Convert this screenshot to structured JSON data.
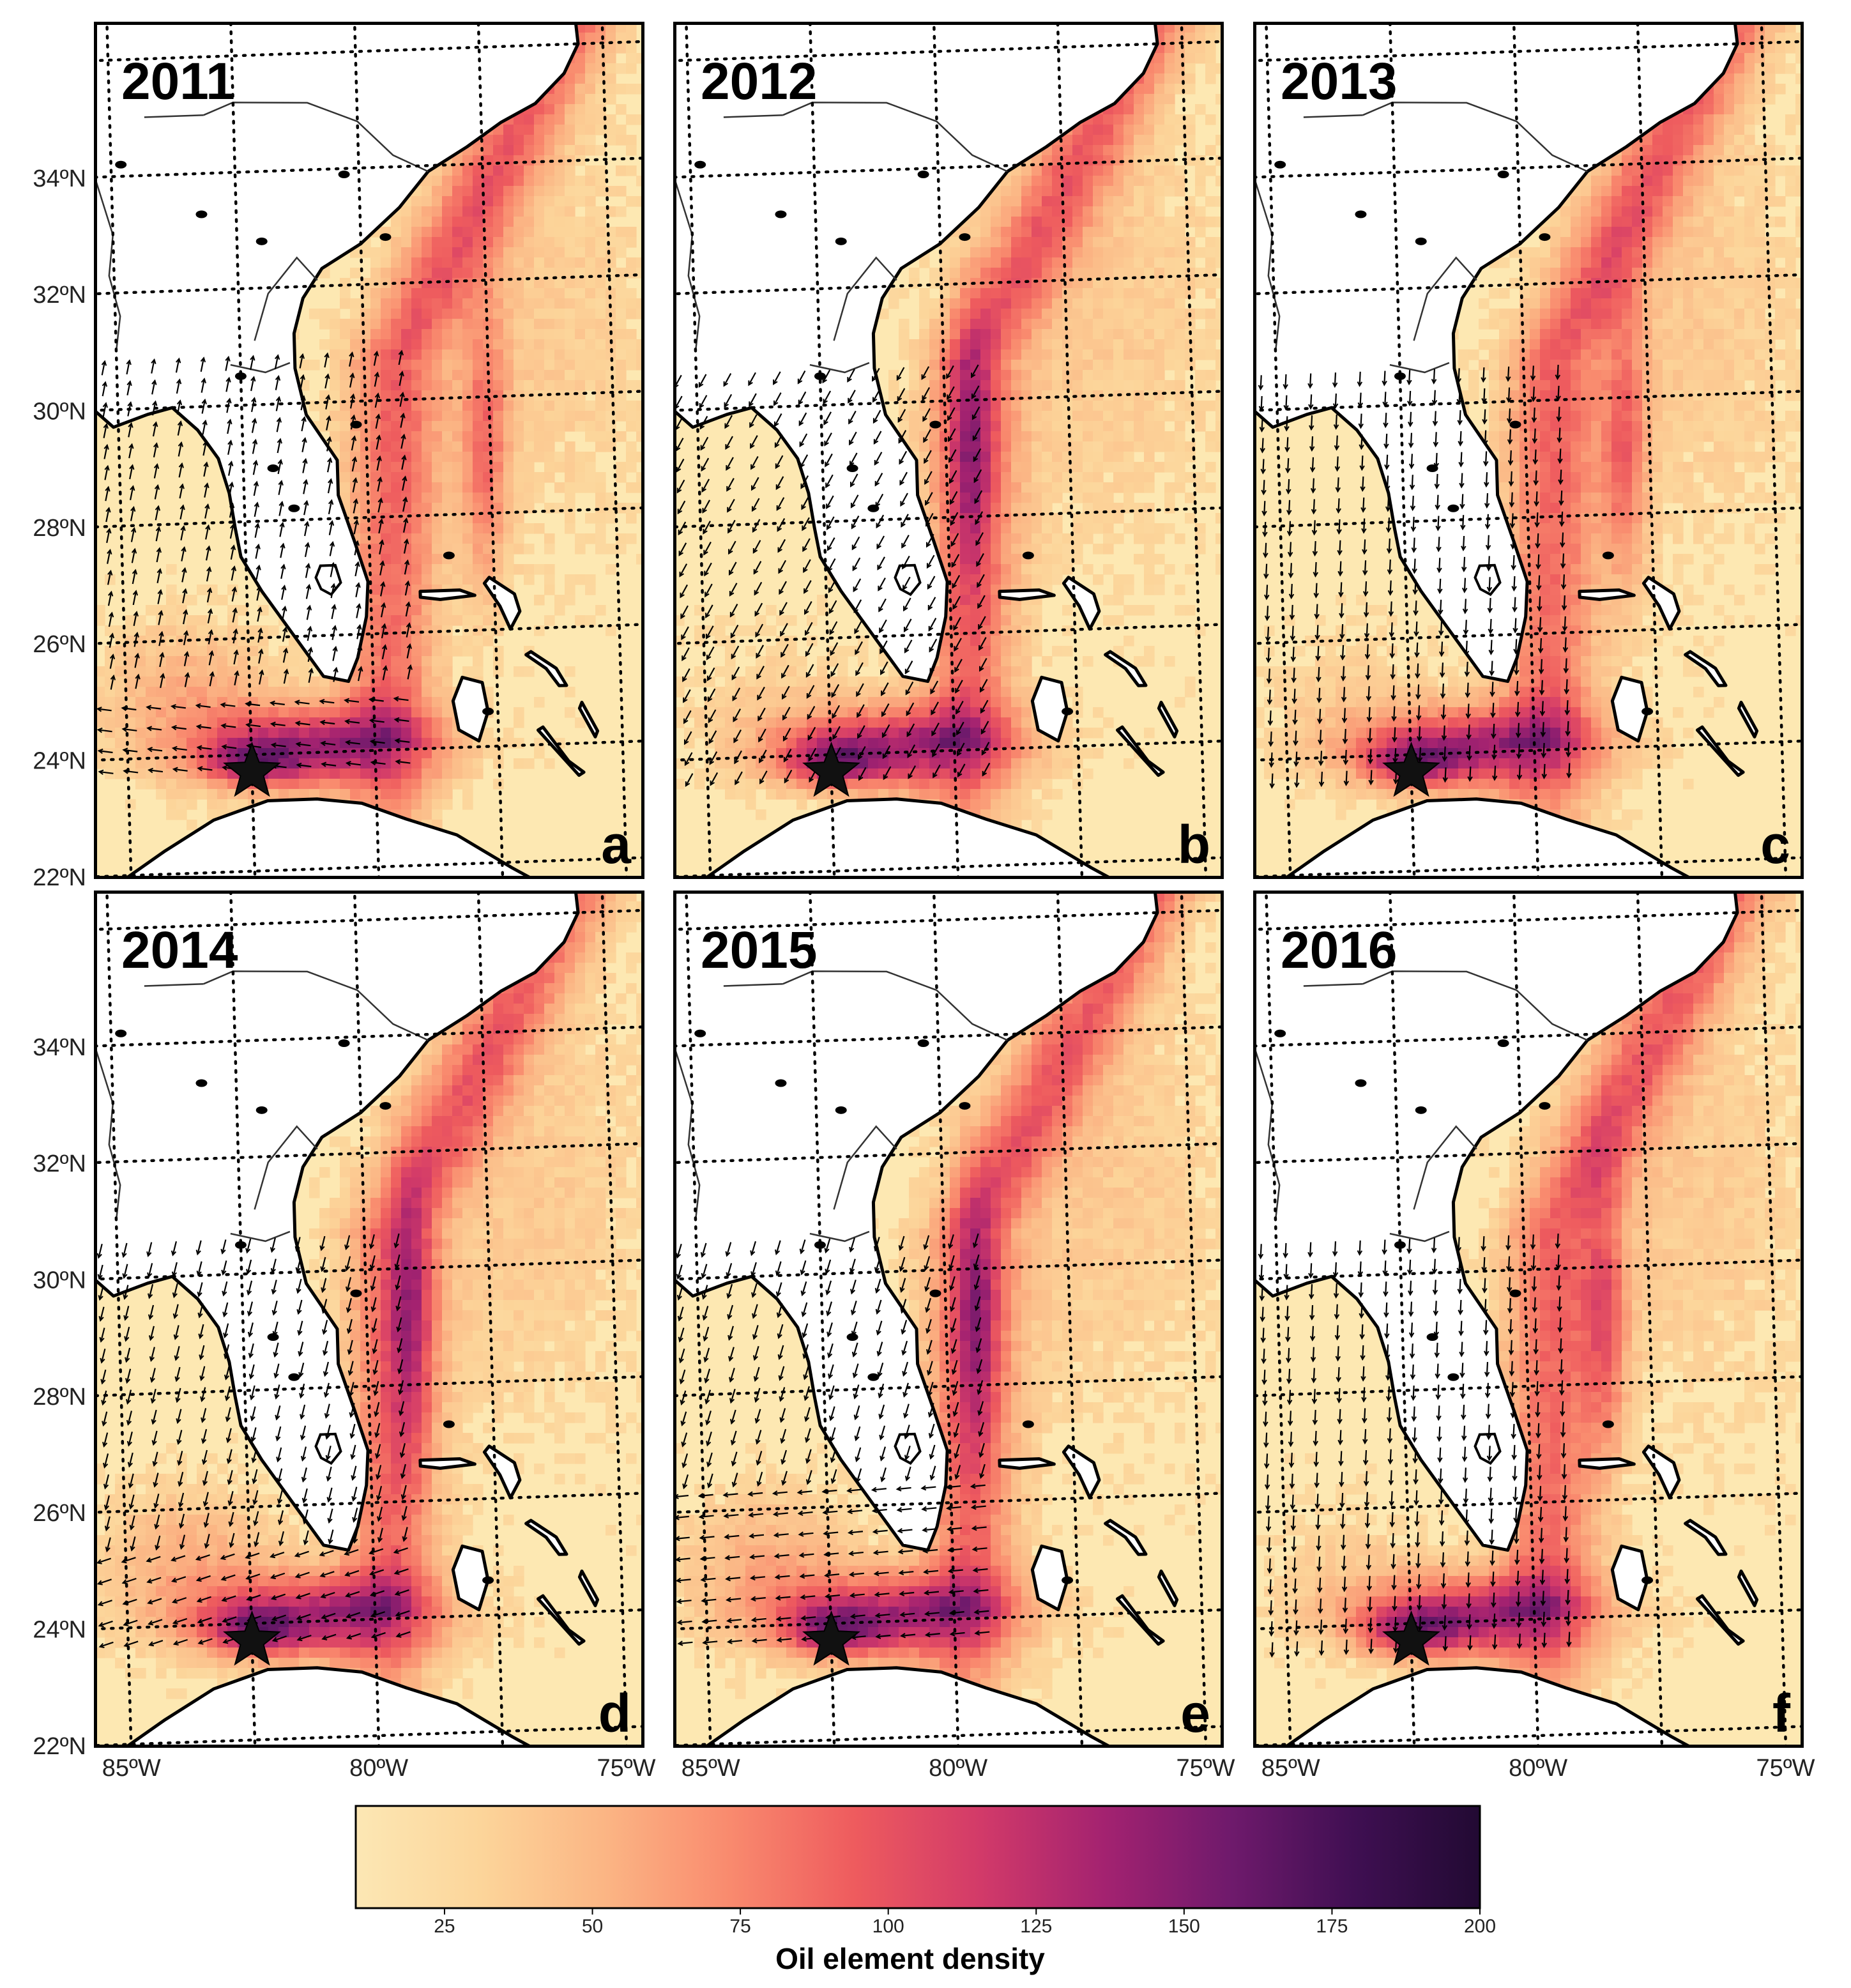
{
  "panels": [
    {
      "year": "2011",
      "letter": "a",
      "wind": "onshore-north",
      "streak_lon": -77.6
    },
    {
      "year": "2012",
      "letter": "b",
      "wind": "southwest",
      "streak_lon": -79.5
    },
    {
      "year": "2013",
      "letter": "c",
      "wind": "south",
      "streak_lon": -78.0
    },
    {
      "year": "2014",
      "letter": "d",
      "wind": "south-southwest",
      "streak_lon": -79.1
    },
    {
      "year": "2015",
      "letter": "e",
      "wind": "west-southwest",
      "streak_lon": -79.4
    },
    {
      "year": "2016",
      "letter": "f",
      "wind": "south",
      "streak_lon": -78.4
    }
  ],
  "lat_labels": [
    "34ºN",
    "32ºN",
    "30ºN",
    "28ºN",
    "26ºN",
    "24ºN",
    "22ºN"
  ],
  "lat_values": [
    34,
    32,
    30,
    28,
    26,
    24,
    22
  ],
  "lon_labels_columns": [
    [
      "85ºW",
      "80ºW",
      "75ºW"
    ],
    [
      "85ºW",
      "80ºW",
      "75ºW"
    ],
    [
      "85ºW",
      "80ºW",
      "75ºW"
    ]
  ],
  "lon_values": [
    -85,
    -80,
    -75
  ],
  "release_marker": {
    "symbol": "star",
    "lon": -82.5,
    "lat": 23.7
  },
  "colorbar": {
    "label": "Oil element density",
    "ticks": [
      "25",
      "50",
      "75",
      "100",
      "125",
      "150",
      "175",
      "200"
    ],
    "tick_values": [
      25,
      50,
      75,
      100,
      125,
      150,
      175,
      200
    ],
    "range": [
      10,
      200
    ],
    "colors": [
      "#fce7b4",
      "#fcd59a",
      "#fbb584",
      "#f98a6e",
      "#ee5b5e",
      "#d23a69",
      "#a32270",
      "#6f1a6c",
      "#3f0f52",
      "#220a33"
    ]
  },
  "colors": {
    "ocean_base": "#fde8b2",
    "land": "#ffffff",
    "coast": "#000000",
    "grid": "#000000"
  }
}
